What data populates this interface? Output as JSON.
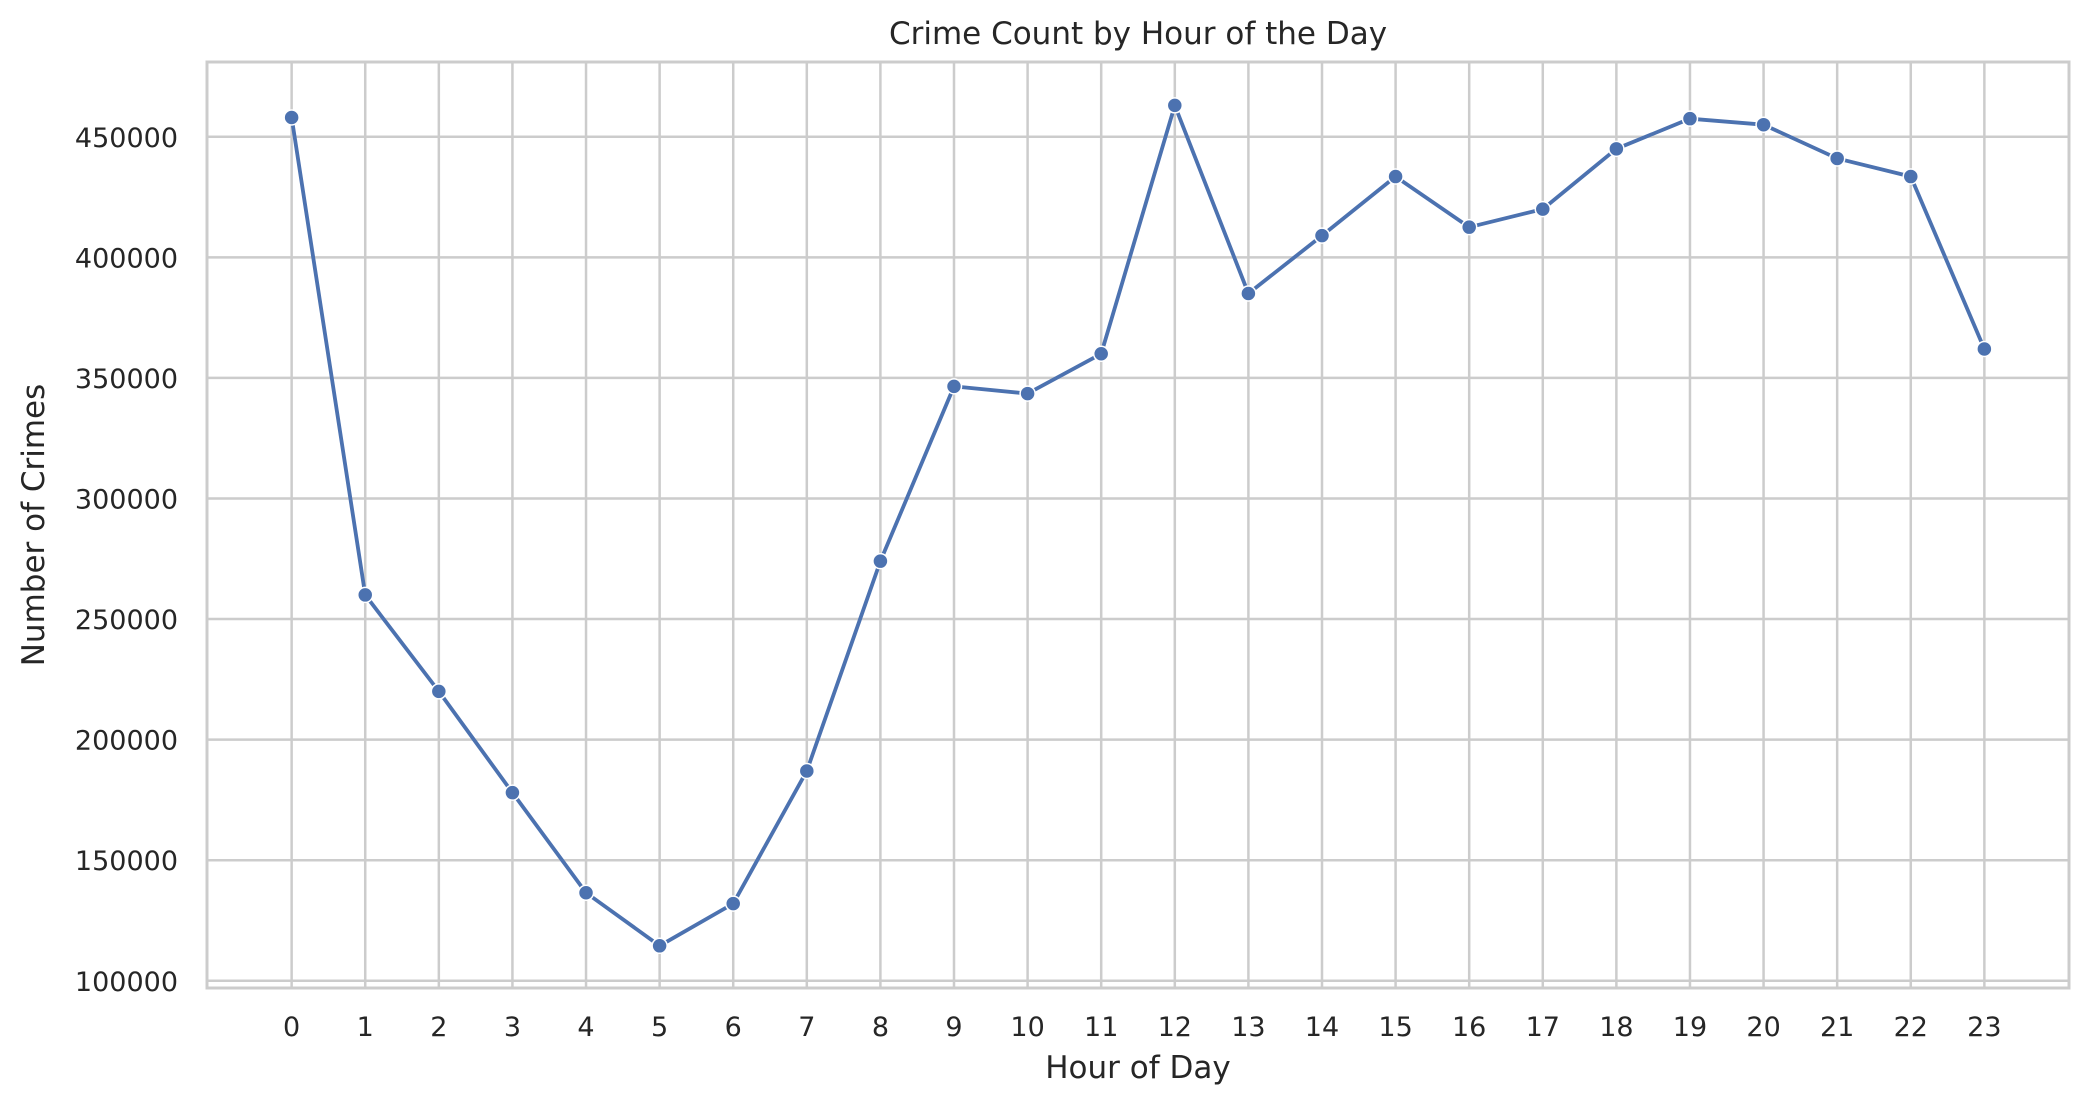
{
  "chart_data": {
    "type": "line",
    "title": "Crime Count by Hour of the Day",
    "xlabel": "Hour of Day",
    "ylabel": "Number of Crimes",
    "x": [
      0,
      1,
      2,
      3,
      4,
      5,
      6,
      7,
      8,
      9,
      10,
      11,
      12,
      13,
      14,
      15,
      16,
      17,
      18,
      19,
      20,
      21,
      22,
      23
    ],
    "x_tick_labels": [
      "0",
      "1",
      "2",
      "3",
      "4",
      "5",
      "6",
      "7",
      "8",
      "9",
      "10",
      "11",
      "12",
      "13",
      "14",
      "15",
      "16",
      "17",
      "18",
      "19",
      "20",
      "21",
      "22",
      "23"
    ],
    "y_ticks": [
      100000,
      150000,
      200000,
      250000,
      300000,
      350000,
      400000,
      450000
    ],
    "y_tick_labels": [
      "100000",
      "150000",
      "200000",
      "250000",
      "300000",
      "350000",
      "400000",
      "450000"
    ],
    "xlim": [
      -1.15,
      24.15
    ],
    "ylim": [
      97000,
      481000
    ],
    "grid": true,
    "series": [
      {
        "color": "#4c72b0",
        "values": [
          458000,
          260000,
          220000,
          178000,
          136500,
          114500,
          132000,
          187000,
          274000,
          346500,
          343500,
          360000,
          463000,
          385000,
          409000,
          433500,
          412500,
          420000,
          445000,
          457500,
          455000,
          441000,
          433500,
          362000
        ]
      }
    ]
  }
}
